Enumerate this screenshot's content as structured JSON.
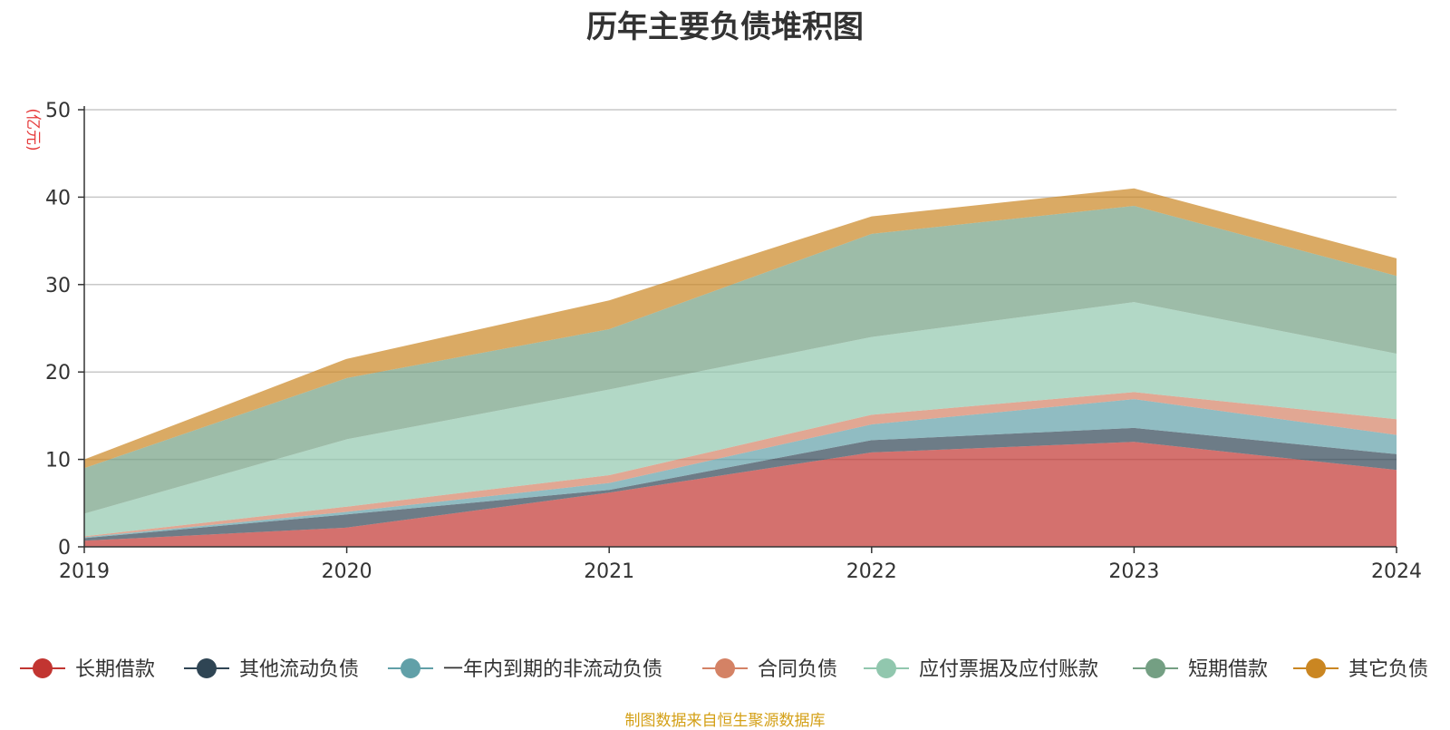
{
  "chart_data": {
    "type": "area",
    "title": "历年主要负债堆积图",
    "ylabel": "(亿元)",
    "xlabel": "",
    "x": [
      "2019",
      "2020",
      "2021",
      "2022",
      "2023",
      "2024"
    ],
    "ylim": [
      0,
      50
    ],
    "yticks": [
      "0",
      "10",
      "20",
      "30",
      "40",
      "50"
    ],
    "grid": true,
    "stacked": true,
    "legend_position": "bottom",
    "series": [
      {
        "name": "长期借款",
        "color": "#c23531",
        "values": [
          0.7,
          2.2,
          6.2,
          10.8,
          12.0,
          8.8
        ]
      },
      {
        "name": "其他流动负债",
        "color": "#2f4554",
        "values": [
          0.3,
          1.5,
          0.3,
          1.4,
          1.6,
          1.8
        ]
      },
      {
        "name": "一年内到期的非流动负债",
        "color": "#61a0a8",
        "values": [
          0.1,
          0.3,
          0.8,
          1.8,
          3.3,
          2.2
        ]
      },
      {
        "name": "合同负债",
        "color": "#d48265",
        "values": [
          0.1,
          0.6,
          0.9,
          1.1,
          0.8,
          1.8
        ]
      },
      {
        "name": "应付票据及应付账款",
        "color": "#91c7ae",
        "values": [
          2.6,
          7.7,
          9.8,
          8.9,
          10.3,
          7.5
        ]
      },
      {
        "name": "短期借款",
        "color": "#749f83",
        "values": [
          5.2,
          7.0,
          6.9,
          11.8,
          11.0,
          8.9
        ]
      },
      {
        "name": "其它负债",
        "color": "#ca8622",
        "values": [
          1.0,
          2.2,
          3.3,
          2.0,
          2.0,
          2.0
        ]
      }
    ]
  },
  "source_note": "制图数据来自恒生聚源数据库"
}
